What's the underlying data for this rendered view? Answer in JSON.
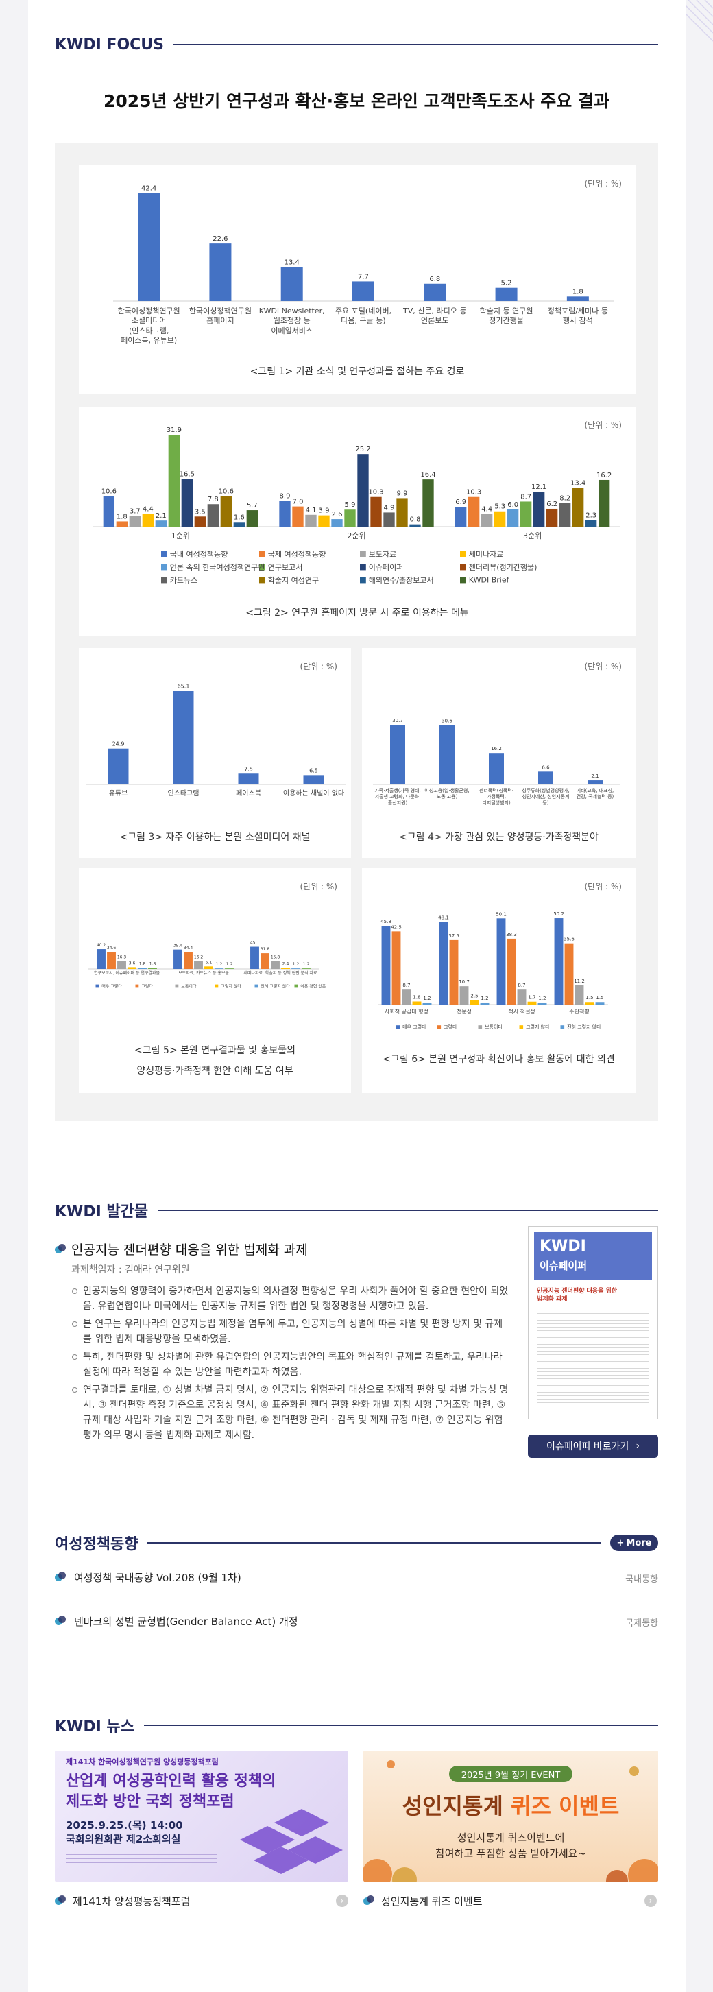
{
  "header": {
    "focus": "KWDI FOCUS",
    "title": "2025년 상반기 연구성과 확산·홍보 온라인 고객만족도조사 주요 결과"
  },
  "chart_data": [
    {
      "type": "bar",
      "unit_label": "(단위 : %)",
      "caption": "<그림 1> 기관 소식 및 연구성과를 접하는 주요 경로",
      "categories": [
        "한국여성정책연구원 소셜미디어 (인스타그램, 페이스북, 유튜브)",
        "한국여성정책연구원 홈페이지",
        "KWDI Newsletter, 웹초청장 등 이메일서비스",
        "주요 포털(네이버, 다음, 구글 등)",
        "TV, 신문, 라디오 등 언론보도",
        "학술지 등 연구원 정기간행물",
        "정책포럼/세미나 등 행사 참석"
      ],
      "values": [
        42.4,
        22.6,
        13.4,
        7.7,
        6.8,
        5.2,
        1.8
      ],
      "color": "#4472c4",
      "ylim": [
        0,
        45
      ]
    },
    {
      "type": "bar",
      "unit_label": "(단위 : %)",
      "caption": "<그림 2> 연구원 홈페이지 방문 시 주로 이용하는 메뉴",
      "categories": [
        "1순위",
        "2순위",
        "3순위"
      ],
      "legend": "bottom",
      "ylim": [
        0,
        35
      ],
      "series": [
        {
          "name": "국내 여성정책동향",
          "color": "#4472c4",
          "values": [
            10.6,
            8.9,
            6.9
          ]
        },
        {
          "name": "국제 여성정책동향",
          "color": "#ed7d31",
          "values": [
            1.8,
            7.0,
            10.3
          ],
          "value_labels": [
            "1.8",
            "7.0",
            "10.3"
          ]
        },
        {
          "name": "보도자료",
          "color": "#a5a5a5",
          "values": [
            3.7,
            4.1,
            4.4
          ]
        },
        {
          "name": "세미나자료",
          "color": "#ffc000",
          "values": [
            4.4,
            3.9,
            5.3
          ]
        },
        {
          "name": "언론 속의 한국여성정책연구원",
          "color": "#5b9bd5",
          "values": [
            2.1,
            2.6,
            6.0
          ],
          "value_labels": [
            "2.1",
            "2.6",
            "6.0"
          ]
        },
        {
          "name": "연구보고서",
          "color": "#70ad47",
          "values": [
            31.9,
            5.9,
            8.7
          ]
        },
        {
          "name": "이슈페이퍼",
          "color": "#264478",
          "values": [
            16.5,
            25.2,
            12.1
          ]
        },
        {
          "name": "젠더리뷰(정기간행물)",
          "color": "#9e480e",
          "values": [
            3.5,
            10.3,
            6.2
          ]
        },
        {
          "name": "카드뉴스",
          "color": "#636363",
          "values": [
            7.8,
            4.9,
            8.2
          ]
        },
        {
          "name": "학술지 여성연구",
          "color": "#997300",
          "values": [
            10.6,
            9.9,
            13.4
          ]
        },
        {
          "name": "해외연수/출장보고서",
          "color": "#255e91",
          "values": [
            1.6,
            0.8,
            2.3
          ]
        },
        {
          "name": "KWDI Brief",
          "color": "#43682b",
          "values": [
            5.7,
            16.4,
            16.2
          ]
        }
      ]
    },
    {
      "type": "bar",
      "unit_label": "(단위 : %)",
      "caption": "<그림 3> 자주 이용하는 본원 소셜미디어 채널",
      "categories": [
        "유튜브",
        "인스타그램",
        "페이스북",
        "이용하는 채널이 없다"
      ],
      "values": [
        24.9,
        65.1,
        7.5,
        6.5
      ],
      "color": "#4472c4",
      "ylim": [
        0,
        70
      ]
    },
    {
      "type": "bar",
      "unit_label": "(단위 : %)",
      "caption": "<그림 4> 가장 관심 있는 양성평등·가족정책분야",
      "categories": [
        "가족·저출생(가족 형태, 저출생 고령화, 다문화·출산지원)",
        "여성고용(일·생활균형, 노동·고용)",
        "젠더폭력(성폭력·가정폭력, 디지털성범죄)",
        "성주류화(성별영향평가, 성인지예산, 성인지통계 등)",
        "기타(교육, 대표성, 건강, 국제협력 등)"
      ],
      "values": [
        30.7,
        30.6,
        16.2,
        6.6,
        2.1
      ],
      "color": "#4472c4",
      "ylim": [
        0,
        35
      ]
    },
    {
      "type": "bar",
      "unit_label": "(단위 : %)",
      "caption": [
        "<그림 5> 본원 연구결과물 및 홍보물의",
        "양성평등·가족정책 현안 이해 도움 여부"
      ],
      "categories": [
        "연구보고서, 이슈페이퍼 등 연구결과물",
        "보도자료, 카드뉴스 등 홍보물",
        "세미나자료, 학술지 등 정책 현안 분석 자료"
      ],
      "legend": "bottom",
      "ylim": [
        0,
        100
      ],
      "series": [
        {
          "name": "매우 그렇다",
          "color": "#4472c4",
          "values": [
            40.2,
            39.4,
            45.1
          ]
        },
        {
          "name": "그렇다",
          "color": "#ed7d31",
          "values": [
            34.6,
            34.4,
            31.8
          ]
        },
        {
          "name": "보통이다",
          "color": "#a5a5a5",
          "values": [
            16.3,
            16.2,
            15.8
          ]
        },
        {
          "name": "그렇지 않다",
          "color": "#ffc000",
          "values": [
            3.6,
            5.1,
            2.4
          ]
        },
        {
          "name": "전혀 그렇지 않다",
          "color": "#5b9bd5",
          "values": [
            1.8,
            1.2,
            1.2
          ]
        },
        {
          "name": "이용 경험 없음",
          "color": "#70ad47",
          "values": [
            1.8,
            1.2,
            1.2
          ]
        }
      ]
    },
    {
      "type": "bar",
      "unit_label": "(단위 : %)",
      "caption": "<그림 6> 본원 연구성과 확산이나 홍보 활동에 대한 의견",
      "categories": [
        "사회적 공감대 형성",
        "전문성",
        "적시 적절성",
        "주관적평"
      ],
      "legend": "bottom",
      "ylim": [
        0,
        55
      ],
      "series": [
        {
          "name": "매우 그렇다",
          "color": "#4472c4",
          "values": [
            45.8,
            48.1,
            50.1,
            50.2
          ]
        },
        {
          "name": "그렇다",
          "color": "#ed7d31",
          "values": [
            42.5,
            37.5,
            38.3,
            35.6
          ]
        },
        {
          "name": "보통이다",
          "color": "#a5a5a5",
          "values": [
            8.7,
            10.7,
            8.7,
            11.2
          ]
        },
        {
          "name": "그렇지 않다",
          "color": "#ffc000",
          "values": [
            1.8,
            2.5,
            1.7,
            1.5
          ]
        },
        {
          "name": "전혀 그렇지 않다",
          "color": "#5b9bd5",
          "values": [
            1.2,
            1.2,
            1.2,
            1.5
          ]
        }
      ]
    }
  ],
  "publications": {
    "heading": "KWDI 발간물",
    "item_title": "인공지능 젠더편향 대응을 위한 법제화 과제",
    "author": "과제책임자 : 김애라 연구위원",
    "bullets": [
      "인공지능의 영향력이 증가하면서 인공지능의 의사결정 편향성은 우리 사회가 풀어야 할 중요한 현안이 되었음. 유럽연합이나 미국에서는 인공지능 규제를 위한 법안 및 행정명령을 시행하고 있음.",
      "본 연구는 우리나라의 인공지능법 제정을 염두에 두고, 인공지능의 성별에 따른 차별 및 편향 방지 및 규제를 위한 법제 대응방향을 모색하였음.",
      "특히, 젠더편향 및 성차별에 관한 유럽연합의 인공지능법안의 목표와 핵심적인 규제를 검토하고, 우리나라 실정에 따라 적용할 수 있는 방안을 마련하고자 하였음.",
      "연구결과를 토대로, ① 성별 차별 금지 명시, ② 인공지능 위험관리 대상으로 잠재적 편향 및 차별 가능성 명시, ③ 젠더편향 측정 기준으로 공정성 명시, ④ 표준화된 젠더 편향 완화 개발 지침 시행 근거조항 마련, ⑤ 규제 대상 사업자 기술 지원 근거 조항 마련, ⑥ 젠더편향 관리 · 감독 및 제재 규정 마련, ⑦ 인공지능 위험 평가 의무 명시 등을 법제화 과제로 제시함."
    ],
    "thumb_brand": "KWDI",
    "thumb_series": "이슈페이퍼",
    "thumb_title": "인공지능 젠더편향 대응을 위한 법제화 과제",
    "button": "이슈페이퍼 바로가기"
  },
  "policy": {
    "heading": "여성정책동향",
    "more": "More",
    "items": [
      {
        "title": "여성정책 국내동향 Vol.208 (9월 1차)",
        "tag": "국내동향"
      },
      {
        "title": "덴마크의 성별 균형법(Gender Balance Act) 개정",
        "tag": "국제동향"
      }
    ]
  },
  "news": {
    "heading": "KWDI 뉴스",
    "cards": [
      {
        "caption": "제141차 양성평등정책포럼",
        "banner_top": "제141차 한국여성정책연구원 양성평등정책포럼",
        "banner_title": [
          "산업계 여성공학인력 활용 정책의",
          "제도화 방안 국회 정책포럼"
        ],
        "banner_date": "2025.9.25.(목) 14:00",
        "banner_place": "국회의원회관 제2소회의실"
      },
      {
        "caption": "성인지통계 퀴즈 이벤트",
        "banner_top": "2025년 9월 정기 EVENT",
        "banner_title": [
          "성인지통계",
          "퀴즈 이벤트"
        ],
        "banner_text": [
          "성인지통계 퀴즈이벤트에",
          "참여하고 푸짐한 상품 받아가세요~"
        ]
      }
    ]
  }
}
